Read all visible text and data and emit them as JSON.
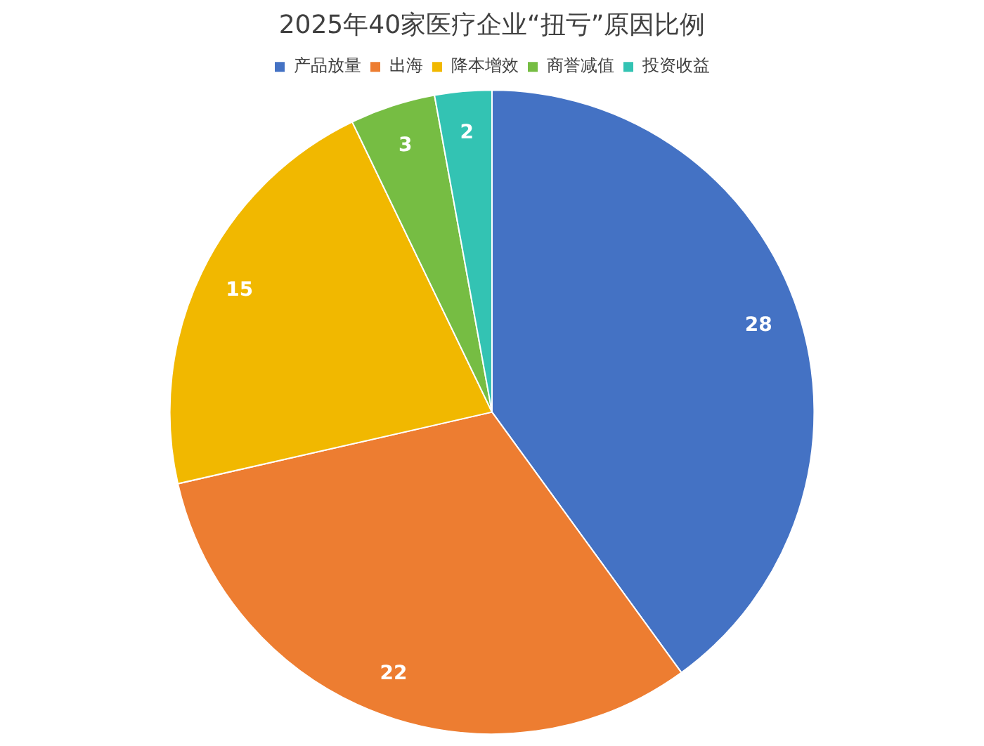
{
  "chart_data": {
    "type": "pie",
    "title": "2025年40家医疗企业“扭亏”原因比例",
    "categories": [
      "产品放量",
      "出海",
      "降本增效",
      "商誉减值",
      "投资收益"
    ],
    "values": [
      28,
      22,
      15,
      3,
      2
    ],
    "colors": [
      "#4472c4",
      "#ed7d31",
      "#f1b800",
      "#76bd43",
      "#33c3b3"
    ],
    "legend": "top",
    "data_labels": true
  }
}
